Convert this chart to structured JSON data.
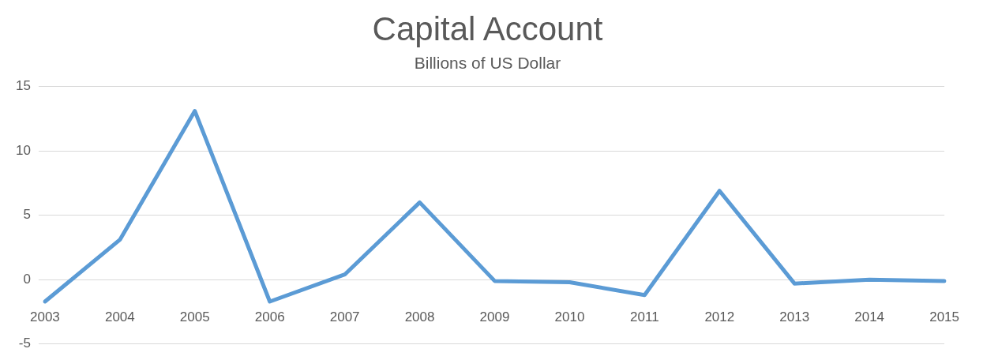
{
  "chart_data": {
    "type": "line",
    "title": "Capital Account",
    "subtitle": "Billions of US Dollar",
    "categories": [
      "2003",
      "2004",
      "2005",
      "2006",
      "2007",
      "2008",
      "2009",
      "2010",
      "2011",
      "2012",
      "2013",
      "2014",
      "2015"
    ],
    "series": [
      {
        "color": "#5b9bd5",
        "values": [
          -1.7,
          3.1,
          13.1,
          -1.7,
          0.4,
          6.0,
          -0.1,
          -0.2,
          -1.2,
          6.9,
          -0.3,
          0,
          -0.1
        ]
      }
    ],
    "ylim": [
      -5,
      15
    ],
    "yticks": [
      -5,
      0,
      5,
      10,
      15
    ],
    "grid": "y",
    "legend": false,
    "marker": "none",
    "line_style": "solid"
  }
}
